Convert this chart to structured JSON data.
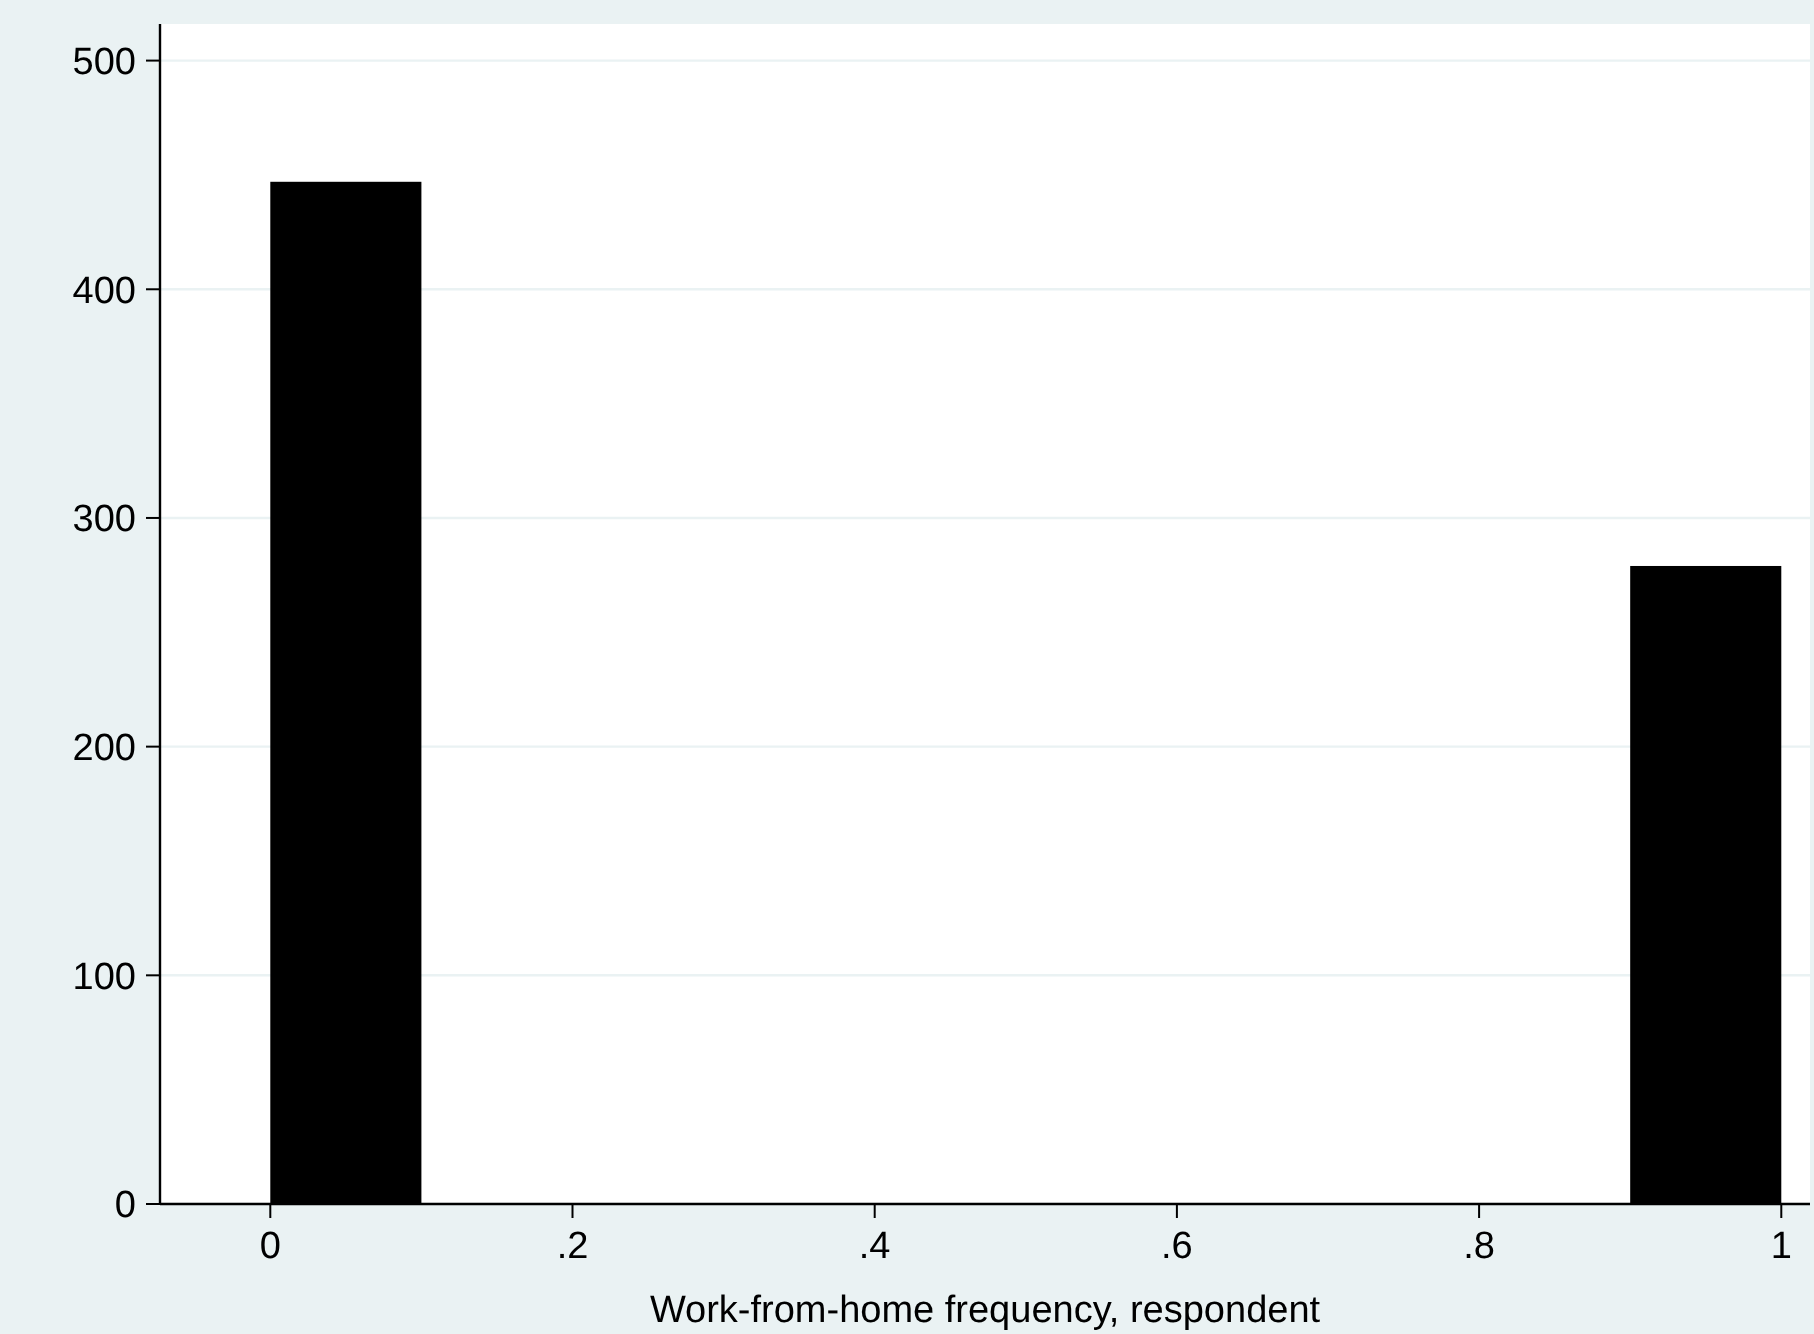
{
  "chart_data": {
    "type": "histogram",
    "xlabel": "Work-from-home frequency, respondent",
    "bins": [
      0,
      0.1,
      0.2,
      0.3,
      0.4,
      0.5,
      0.6,
      0.7,
      0.8,
      0.9,
      1
    ],
    "values": [
      447,
      0,
      0,
      0,
      0,
      0,
      0,
      0,
      0,
      279
    ],
    "color": "#000000",
    "xlim": [
      -0.073,
      1.019
    ],
    "ylim": [
      0,
      516
    ],
    "xticks": [
      0,
      {
        "value": 0.2,
        "label": ".2"
      },
      {
        "value": 0.4,
        "label": ".4"
      },
      {
        "value": 0.6,
        "label": ".6"
      },
      {
        "value": 0.8,
        "label": ".8"
      },
      1
    ],
    "yticks": [
      0,
      100,
      200,
      300,
      400,
      500
    ],
    "grid": "y"
  }
}
